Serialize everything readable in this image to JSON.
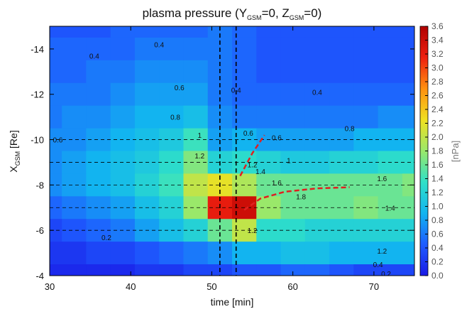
{
  "chart_data": {
    "type": "heatmap",
    "title_parts": [
      "plasma pressure (Y",
      "GSM",
      "=0, Z",
      "GSM",
      "=0)"
    ],
    "xlabel": "time [min]",
    "ylabel_parts": [
      "X",
      "GSM",
      " [Re]"
    ],
    "colorbar_label": "[nPa]",
    "xlim": [
      30,
      75
    ],
    "xticks": [
      30,
      40,
      50,
      60,
      70
    ],
    "ylim": [
      -4,
      -15
    ],
    "yticks": [
      -14,
      -12,
      -10,
      -8,
      -6,
      -4
    ],
    "zlim": [
      0,
      3.6
    ],
    "zticks": [
      {
        "value": 0,
        "label": "0.0"
      },
      0.2,
      0.4,
      0.6,
      0.8,
      {
        "value": 1,
        "label": "1.0"
      },
      1.2,
      1.4,
      1.6,
      1.8,
      {
        "value": 2,
        "label": "2.0"
      },
      2.2,
      2.4,
      2.6,
      2.8,
      {
        "value": 3,
        "label": "3.0"
      },
      3.2,
      3.4,
      3.6
    ],
    "colormap": [
      "#1a1ae6",
      "#1e5cff",
      "#12b4f0",
      "#2fe0c8",
      "#9ae86a",
      "#f0e020",
      "#ff9010",
      "#ee2010",
      "#b00000"
    ],
    "x": [
      30,
      33,
      36,
      39,
      42,
      45,
      48,
      51,
      54,
      57,
      60,
      63,
      66,
      69,
      72,
      75
    ],
    "y": [
      -15,
      -14,
      -13,
      -12,
      -11,
      -10,
      -9,
      -8,
      -7,
      -6,
      -5,
      -4
    ],
    "z": [
      [
        0.4,
        0.4,
        0.4,
        0.5,
        0.5,
        0.5,
        0.5,
        0.6,
        0.5,
        0.4,
        0.4,
        0.4,
        0.4,
        0.4,
        0.4,
        0.4
      ],
      [
        0.5,
        0.5,
        0.5,
        0.5,
        0.6,
        0.6,
        0.6,
        0.6,
        0.5,
        0.4,
        0.4,
        0.4,
        0.4,
        0.4,
        0.4,
        0.4
      ],
      [
        0.5,
        0.5,
        0.6,
        0.6,
        0.7,
        0.7,
        0.7,
        0.6,
        0.5,
        0.4,
        0.4,
        0.4,
        0.4,
        0.4,
        0.4,
        0.4
      ],
      [
        0.6,
        0.6,
        0.6,
        0.7,
        0.8,
        0.8,
        0.8,
        0.6,
        0.5,
        0.5,
        0.5,
        0.5,
        0.5,
        0.5,
        0.5,
        0.5
      ],
      [
        0.6,
        0.7,
        0.7,
        0.8,
        0.9,
        0.9,
        1.0,
        0.7,
        0.6,
        0.6,
        0.6,
        0.6,
        0.6,
        0.6,
        0.7,
        0.7
      ],
      [
        0.7,
        0.7,
        0.8,
        0.9,
        1.0,
        1.1,
        1.4,
        0.8,
        0.9,
        0.8,
        0.8,
        0.8,
        0.8,
        0.9,
        0.9,
        0.9
      ],
      [
        0.7,
        0.8,
        0.9,
        1.0,
        1.1,
        1.3,
        1.7,
        1.2,
        1.3,
        1.2,
        1.1,
        1.1,
        1.2,
        1.2,
        1.3,
        1.3
      ],
      [
        0.7,
        0.8,
        0.9,
        1.0,
        1.2,
        1.4,
        2.0,
        2.2,
        1.9,
        1.6,
        1.6,
        1.6,
        1.6,
        1.6,
        1.6,
        1.7
      ],
      [
        0.5,
        0.6,
        0.7,
        0.8,
        1.0,
        1.2,
        1.8,
        3.2,
        3.4,
        1.8,
        1.6,
        1.6,
        1.6,
        1.7,
        1.6,
        1.6
      ],
      [
        0.3,
        0.4,
        0.5,
        0.6,
        0.8,
        1.0,
        1.2,
        1.6,
        2.0,
        1.3,
        1.3,
        1.2,
        1.2,
        1.2,
        1.2,
        1.2
      ],
      [
        0.2,
        0.2,
        0.3,
        0.3,
        0.4,
        0.5,
        0.6,
        0.7,
        0.9,
        0.9,
        1.0,
        1.0,
        0.9,
        0.9,
        0.9,
        0.9
      ],
      [
        0.1,
        0.1,
        0.1,
        0.1,
        0.2,
        0.2,
        0.3,
        0.3,
        0.4,
        0.4,
        0.5,
        0.5,
        0.4,
        0.3,
        0.3,
        0.3
      ]
    ],
    "vlines": [
      51,
      53
    ],
    "hlines": [
      -10,
      -9,
      -8,
      -7,
      -6
    ],
    "contour_labels": [
      {
        "x": 35.5,
        "y": -13.7,
        "value": 0.4
      },
      {
        "x": 43.5,
        "y": -14.2,
        "value": 0.4
      },
      {
        "x": 46,
        "y": -12.3,
        "value": 0.6
      },
      {
        "x": 45.5,
        "y": -11,
        "value": 0.8
      },
      {
        "x": 48.5,
        "y": -10.2,
        "value": 1.0
      },
      {
        "x": 48.5,
        "y": -9.3,
        "value": 1.2
      },
      {
        "x": 31,
        "y": -10,
        "value": 0.6
      },
      {
        "x": 53,
        "y": -12.2,
        "value": 0.4
      },
      {
        "x": 63,
        "y": -12.1,
        "value": 0.4
      },
      {
        "x": 54.5,
        "y": -10.3,
        "value": 0.6
      },
      {
        "x": 58,
        "y": -10.1,
        "value": 0.6
      },
      {
        "x": 67,
        "y": -10.5,
        "value": 0.8
      },
      {
        "x": 55,
        "y": -8.9,
        "value": 1.2
      },
      {
        "x": 56,
        "y": -8.6,
        "value": 1.4
      },
      {
        "x": 59.5,
        "y": -9.1,
        "value": 1.0
      },
      {
        "x": 58,
        "y": -8.1,
        "value": 1.6
      },
      {
        "x": 61,
        "y": -7.5,
        "value": 1.8
      },
      {
        "x": 71,
        "y": -8.3,
        "value": 1.6
      },
      {
        "x": 72,
        "y": -7.0,
        "value": 1.4
      },
      {
        "x": 37,
        "y": -5.7,
        "value": 0.2
      },
      {
        "x": 55,
        "y": -6.0,
        "value": 1.2
      },
      {
        "x": 71,
        "y": -5.1,
        "value": 1.2
      },
      {
        "x": 70.5,
        "y": -4.5,
        "value": 0.4
      },
      {
        "x": 71.5,
        "y": -4.1,
        "value": 0.2
      }
    ],
    "curves": [
      {
        "color": "#e02020",
        "x": [
          53.5,
          55,
          56.5
        ],
        "y": [
          -8.4,
          -9.4,
          -10.2
        ]
      },
      {
        "color": "#e02020",
        "x": [
          54,
          56,
          59,
          63,
          67
        ],
        "y": [
          -6.9,
          -7.4,
          -7.7,
          -7.85,
          -7.9
        ]
      }
    ]
  }
}
